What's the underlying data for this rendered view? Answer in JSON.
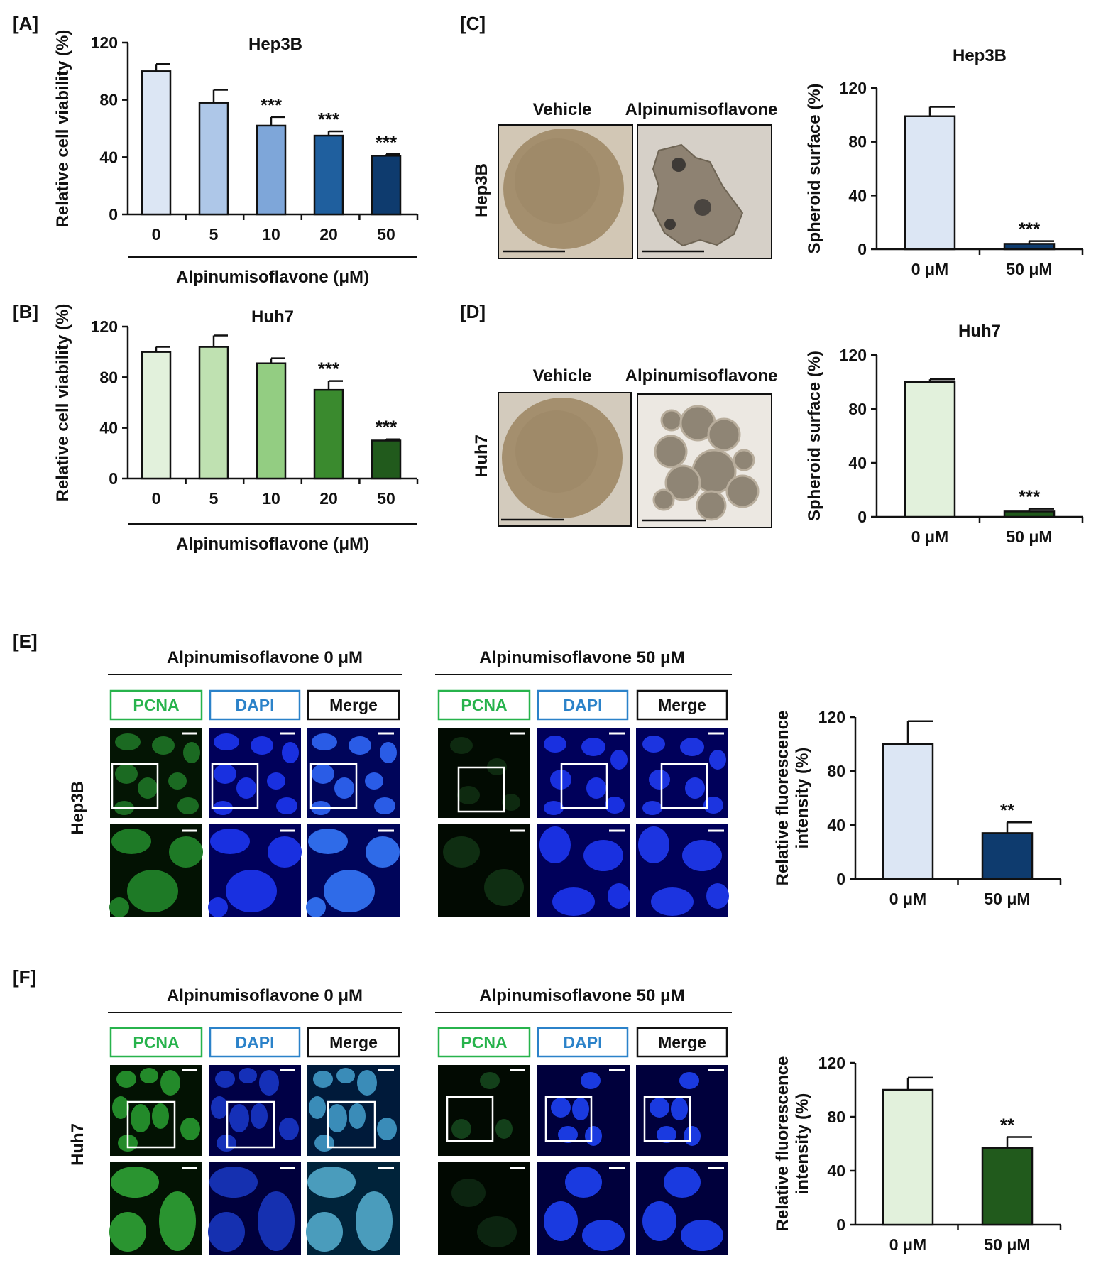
{
  "colors": {
    "hep3b": [
      "#dce6f4",
      "#aec7e8",
      "#7ea6d9",
      "#1f5f9e",
      "#0e3b6e"
    ],
    "huh7": [
      "#e2f1dc",
      "#bfe1b1",
      "#93cd82",
      "#3a8a2e",
      "#215a1c"
    ],
    "pcna": "#27b34c",
    "dapi": "#2b82c9",
    "merge": "#111111",
    "axis": "#111111"
  },
  "panels": {
    "A": "[A]",
    "B": "[B]",
    "C": "[C]",
    "D": "[D]",
    "E": "[E]",
    "F": "[F]"
  },
  "spheroid": {
    "vehicle_label": "Vehicle",
    "treat_label": "Alpinumisoflavone",
    "row_C": "Hep3B",
    "row_D": "Huh7"
  },
  "ifpanels": {
    "header_0": "Alpinumisoflavone 0 μM",
    "header_50": "Alpinumisoflavone 50 μM",
    "pcna": "PCNA",
    "dapi": "DAPI",
    "merge": "Merge",
    "row_E": "Hep3B",
    "row_F": "Huh7"
  },
  "chart_data": [
    {
      "id": "A",
      "type": "bar",
      "title": "Hep3B",
      "categories": [
        "0",
        "5",
        "10",
        "20",
        "50"
      ],
      "values": [
        100,
        78,
        62,
        55,
        41
      ],
      "errors": [
        5,
        9,
        6,
        3,
        1
      ],
      "annotations": [
        "",
        "",
        "***",
        "***",
        "***"
      ],
      "xlabel": "Alpinumisoflavone (μM)",
      "ylabel": "Relative cell viability (%)",
      "ylim": [
        0,
        120
      ],
      "yticks": [
        0,
        40,
        80,
        120
      ],
      "palette": "hep3b"
    },
    {
      "id": "B",
      "type": "bar",
      "title": "Huh7",
      "categories": [
        "0",
        "5",
        "10",
        "20",
        "50"
      ],
      "values": [
        100,
        104,
        91,
        70,
        30
      ],
      "errors": [
        4,
        9,
        4,
        7,
        1
      ],
      "annotations": [
        "",
        "",
        "",
        "***",
        "***"
      ],
      "xlabel": "Alpinumisoflavone (μM)",
      "ylabel": "Relative cell viability (%)",
      "ylim": [
        0,
        120
      ],
      "yticks": [
        0,
        40,
        80,
        120
      ],
      "palette": "huh7"
    },
    {
      "id": "C",
      "type": "bar",
      "title": "Hep3B",
      "categories": [
        "0 μM",
        "50 μM"
      ],
      "values": [
        99,
        4
      ],
      "errors": [
        7,
        2
      ],
      "annotations": [
        "",
        "***"
      ],
      "xlabel": "",
      "ylabel": "Spheroid surface (%)",
      "ylim": [
        0,
        120
      ],
      "yticks": [
        0,
        40,
        80,
        120
      ],
      "palette": "hep3b2"
    },
    {
      "id": "D",
      "type": "bar",
      "title": "Huh7",
      "categories": [
        "0 μM",
        "50 μM"
      ],
      "values": [
        100,
        4
      ],
      "errors": [
        2,
        2
      ],
      "annotations": [
        "",
        "***"
      ],
      "xlabel": "",
      "ylabel": "Spheroid surface (%)",
      "ylim": [
        0,
        120
      ],
      "yticks": [
        0,
        40,
        80,
        120
      ],
      "palette": "huh72"
    },
    {
      "id": "E",
      "type": "bar",
      "title": "",
      "categories": [
        "0 μM",
        "50 μM"
      ],
      "values": [
        100,
        34
      ],
      "errors": [
        17,
        8
      ],
      "annotations": [
        "",
        "**"
      ],
      "xlabel": "",
      "ylabel": "Relative fluorescence intensity (%)",
      "ylabel_lines": [
        "Relative fluorescence",
        "intensity (%)"
      ],
      "ylim": [
        0,
        120
      ],
      "yticks": [
        0,
        40,
        80,
        120
      ],
      "palette": "hep3b2"
    },
    {
      "id": "F",
      "type": "bar",
      "title": "",
      "categories": [
        "0 μM",
        "50 μM"
      ],
      "values": [
        100,
        57
      ],
      "errors": [
        9,
        8
      ],
      "annotations": [
        "",
        "**"
      ],
      "xlabel": "",
      "ylabel": "Relative fluorescence intensity (%)",
      "ylabel_lines": [
        "Relative fluorescence",
        "intensity (%)"
      ],
      "ylim": [
        0,
        120
      ],
      "yticks": [
        0,
        40,
        80,
        120
      ],
      "palette": "huh72"
    }
  ]
}
